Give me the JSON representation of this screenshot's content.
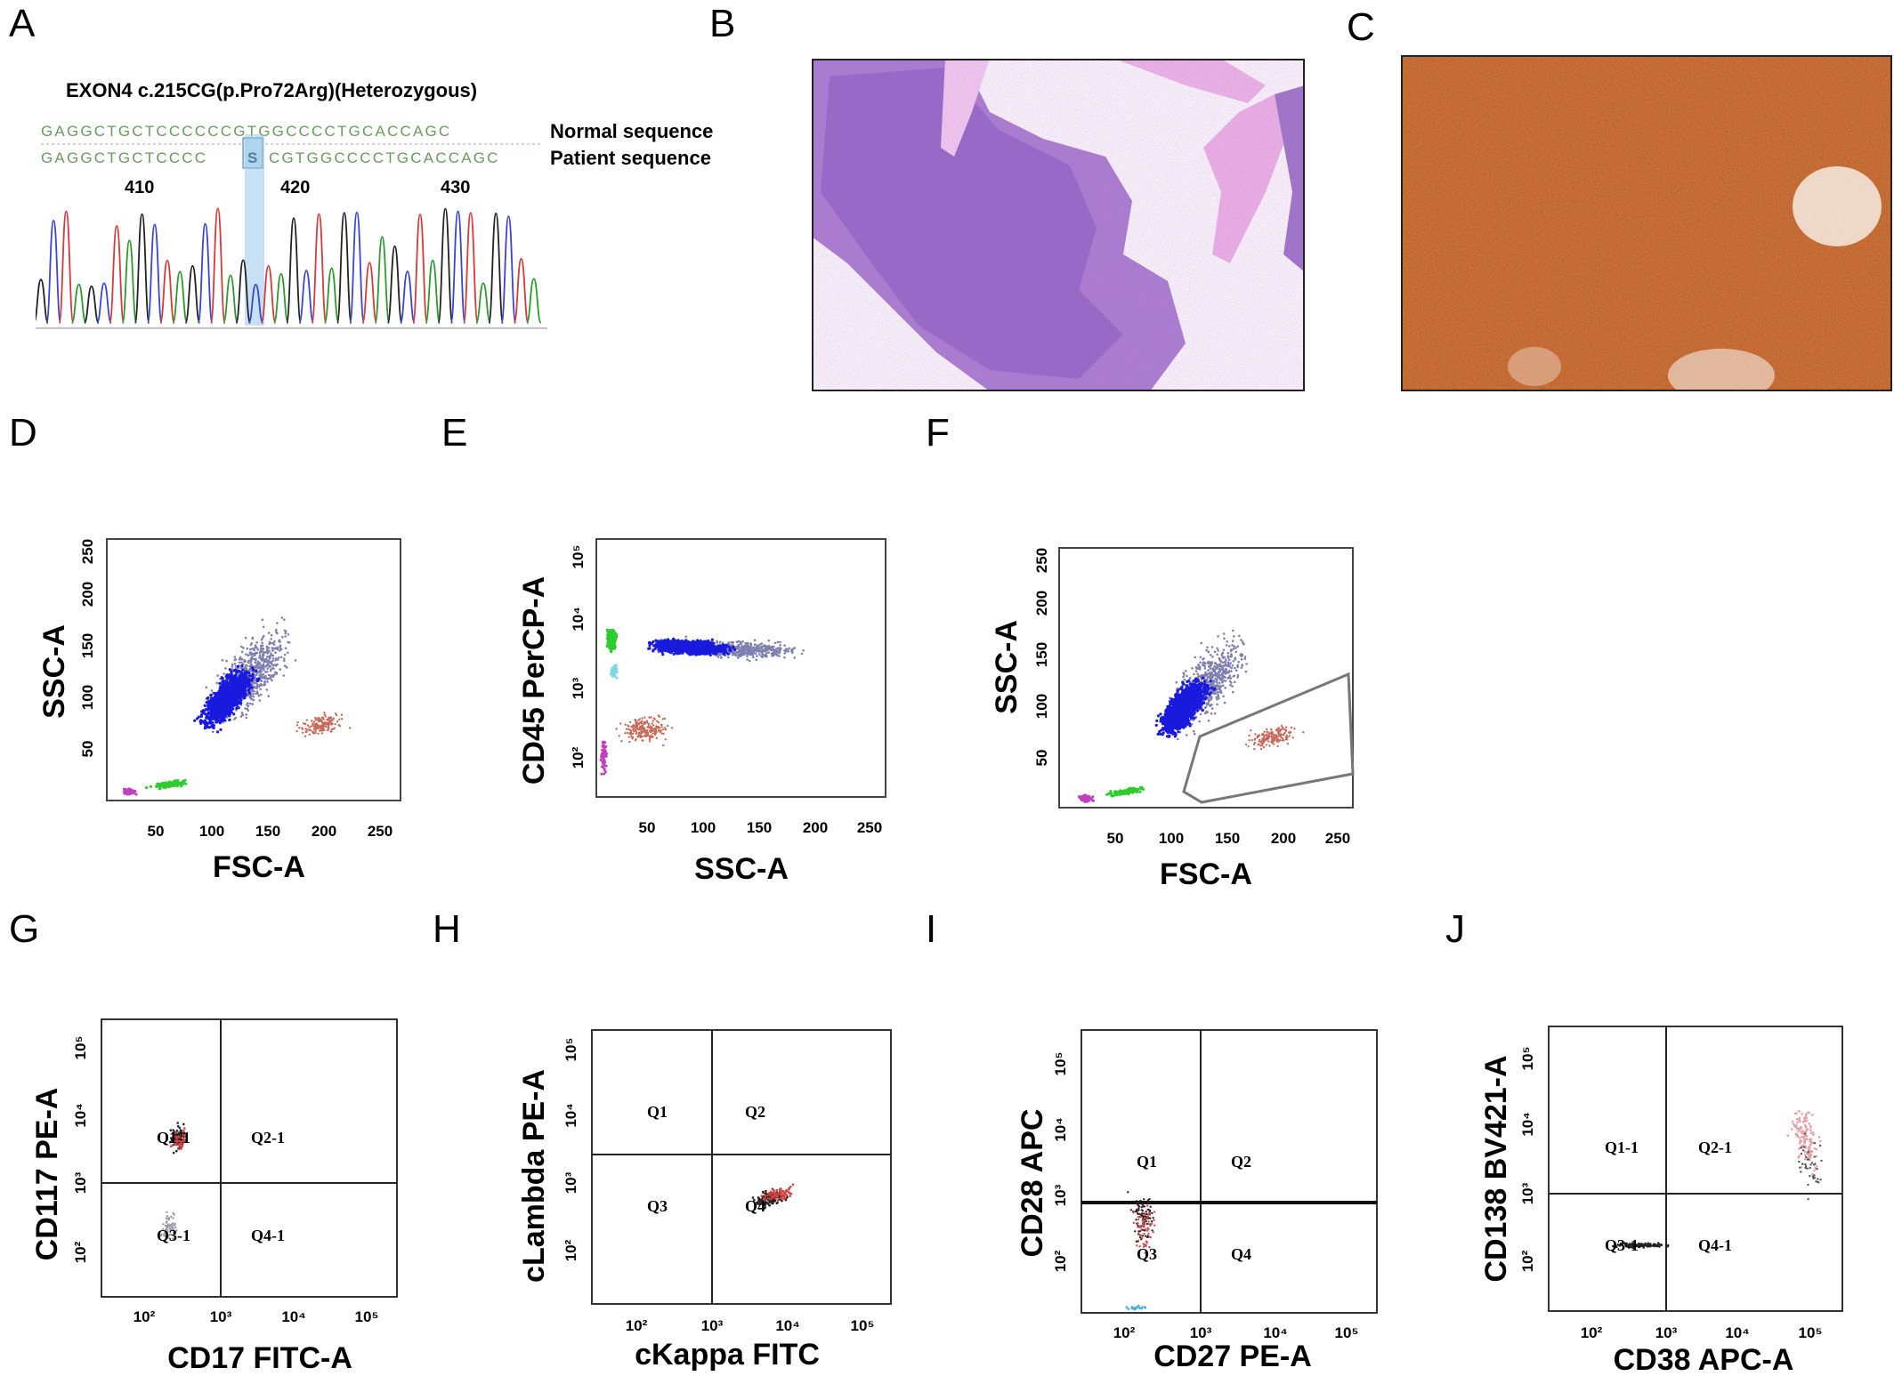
{
  "panels": {
    "A": {
      "letter": "A",
      "title": "EXON4 c.215CG(p.Pro72Arg)(Heterozygous)",
      "normal_seq": "GAGGCTGCTCCCCCCGTGGCCCCTGCACCAGC",
      "patient_seq_left": "GAGGCTGCTCCCC",
      "mutant_base": "S",
      "patient_seq_right": "CGTGGCCCCTGCACCAGC",
      "normal_label": "Normal sequence",
      "patient_label": "Patient sequence",
      "positions": [
        "410",
        "420",
        "430"
      ]
    },
    "B": {
      "letter": "B"
    },
    "C": {
      "letter": "C"
    },
    "D": {
      "letter": "D",
      "xlabel": "FSC-A",
      "ylabel": "SSC-A",
      "xticks": [
        "50",
        "100",
        "150",
        "200",
        "250"
      ],
      "yticks": [
        "50",
        "100",
        "150",
        "200",
        "250"
      ]
    },
    "E": {
      "letter": "E",
      "xlabel": "SSC-A",
      "ylabel": "CD45 PerCP-A",
      "xticks": [
        "50",
        "100",
        "150",
        "200",
        "250"
      ],
      "yticks": [
        "10²",
        "10³",
        "10⁴",
        "10⁵"
      ]
    },
    "F": {
      "letter": "F",
      "xlabel": "FSC-A",
      "ylabel": "SSC-A",
      "xticks": [
        "50",
        "100",
        "150",
        "200",
        "250"
      ],
      "yticks": [
        "50",
        "100",
        "150",
        "200",
        "250"
      ]
    },
    "G": {
      "letter": "G",
      "xlabel": "CD17 FITC-A",
      "ylabel": "CD117 PE-A",
      "xticks": [
        "10²",
        "10³",
        "10⁴",
        "10⁵"
      ],
      "yticks": [
        "10²",
        "10³",
        "10⁴",
        "10⁵"
      ],
      "quadrants": [
        "Q1-1",
        "Q2-1",
        "Q3-1",
        "Q4-1"
      ]
    },
    "H": {
      "letter": "H",
      "xlabel": "cKappa FITC",
      "ylabel": "cLambda PE-A",
      "xticks": [
        "10²",
        "10³",
        "10⁴",
        "10⁵"
      ],
      "yticks": [
        "10²",
        "10³",
        "10⁴",
        "10⁵"
      ],
      "quadrants": [
        "Q1",
        "Q2",
        "Q3",
        "Q4"
      ]
    },
    "I": {
      "letter": "I",
      "xlabel": "CD27 PE-A",
      "ylabel": "CD28 APC",
      "xticks": [
        "10²",
        "10³",
        "10⁴",
        "10⁵"
      ],
      "yticks": [
        "10²",
        "10³",
        "10⁴",
        "10⁵"
      ],
      "quadrants": [
        "Q1",
        "Q2",
        "Q3",
        "Q4"
      ]
    },
    "J": {
      "letter": "J",
      "xlabel": "CD38 APC-A",
      "ylabel": "CD138 BV421-A",
      "xticks": [
        "10²",
        "10³",
        "10⁴",
        "10⁵"
      ],
      "yticks": [
        "10²",
        "10³",
        "10⁴",
        "10⁵"
      ],
      "quadrants": [
        "Q1-1",
        "Q2-1",
        "Q3-1",
        "Q4-1"
      ]
    }
  },
  "colors": {
    "population_main": "#1a1adf",
    "population_grey": "#8080b0",
    "population_red": "#c86a5a",
    "population_green": "#2ecc2e",
    "population_magenta": "#c040c0",
    "he_stain": "#9a5fc0",
    "he_pink": "#e7a6df",
    "ihc_brown": "#b5571f"
  }
}
